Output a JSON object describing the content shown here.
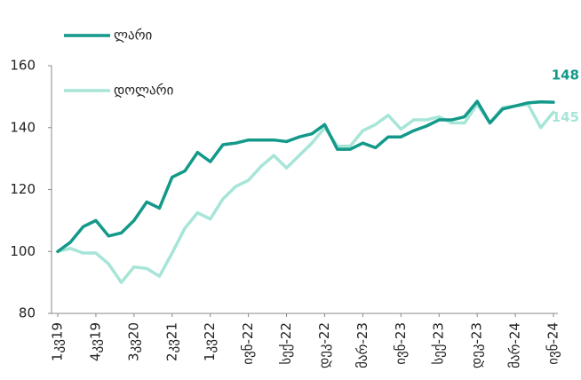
{
  "chart_data": {
    "type": "line",
    "categories": [
      "1კვ19",
      null,
      null,
      "4კვ19",
      null,
      null,
      "3კვ20",
      null,
      null,
      "2კვ21",
      null,
      null,
      "1კვ22",
      null,
      null,
      "ივნ-22",
      null,
      null,
      "სექ-22",
      null,
      null,
      "დეკ-22",
      null,
      null,
      "მარ-23",
      null,
      null,
      "ივნ-23",
      null,
      null,
      "სექ-23",
      null,
      null,
      "დეკ-23",
      null,
      null,
      "მარ-24",
      null,
      null,
      "ივნ-24"
    ],
    "series": [
      {
        "name": "ლარი",
        "color": "#13998a",
        "end_label": "148",
        "values": [
          100,
          103,
          108,
          110,
          105,
          106,
          110,
          116,
          114,
          124,
          126,
          132,
          129,
          134.5,
          135,
          136,
          136,
          136,
          135.5,
          137,
          138,
          141,
          133,
          133,
          135,
          133.5,
          137,
          137,
          139,
          140.5,
          142.5,
          142.5,
          143.5,
          148.5,
          141.5,
          146,
          147,
          148,
          148.3,
          148.2
        ]
      },
      {
        "name": "დოლარი",
        "color": "#a6e5d8",
        "end_label": "145",
        "values": [
          100,
          101,
          99.5,
          99.5,
          96,
          90,
          95,
          94.5,
          92,
          99.5,
          107.5,
          112.5,
          110.5,
          117,
          121,
          123,
          127.5,
          131,
          127,
          131,
          135,
          140,
          134,
          134,
          139,
          141,
          144,
          139.5,
          142.5,
          142.5,
          143.5,
          141.5,
          141.5,
          147.5,
          141.5,
          146.5,
          147,
          147.5,
          140,
          145
        ]
      }
    ],
    "ylim": [
      80,
      160
    ],
    "yticks": [
      80,
      100,
      120,
      140,
      160
    ],
    "legend": "top-left"
  }
}
